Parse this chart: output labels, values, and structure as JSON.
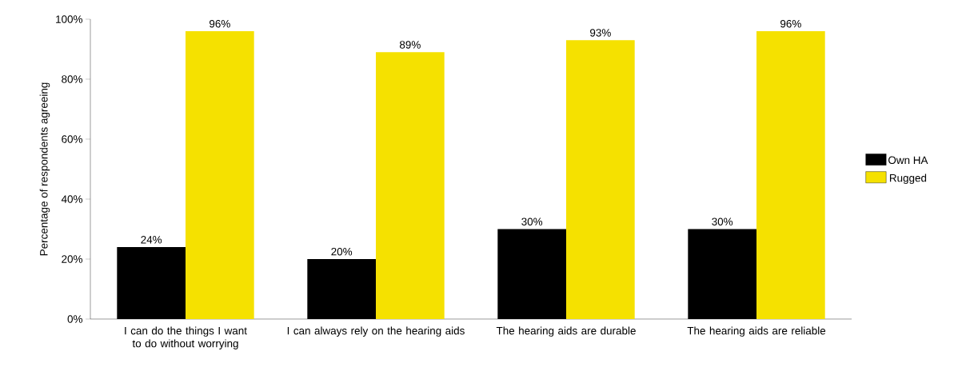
{
  "chart_data": {
    "type": "bar",
    "ylabel": "Percentage of respondents agreeing",
    "categories": [
      "I can do the things I want to do without worrying",
      "I can always rely on the hearing aids",
      "The hearing aids are durable",
      "The hearing aids are reliable"
    ],
    "series": [
      {
        "name": "Own HA",
        "color": "#000000",
        "values": [
          24,
          20,
          30,
          30
        ],
        "value_labels": [
          "24%",
          "20%",
          "30%",
          "30%"
        ]
      },
      {
        "name": "Rugged",
        "color": "#f5e100",
        "values": [
          96,
          89,
          93,
          96
        ],
        "value_labels": [
          "96%",
          "89%",
          "93%",
          "96%"
        ]
      }
    ],
    "ylim": [
      0,
      100
    ],
    "yticks": [
      {
        "value": 0,
        "label": "0%"
      },
      {
        "value": 20,
        "label": "20%"
      },
      {
        "value": 40,
        "label": "40%"
      },
      {
        "value": 60,
        "label": "60%"
      },
      {
        "value": 80,
        "label": "80%"
      },
      {
        "value": 100,
        "label": "100%"
      }
    ],
    "legend": "right"
  }
}
